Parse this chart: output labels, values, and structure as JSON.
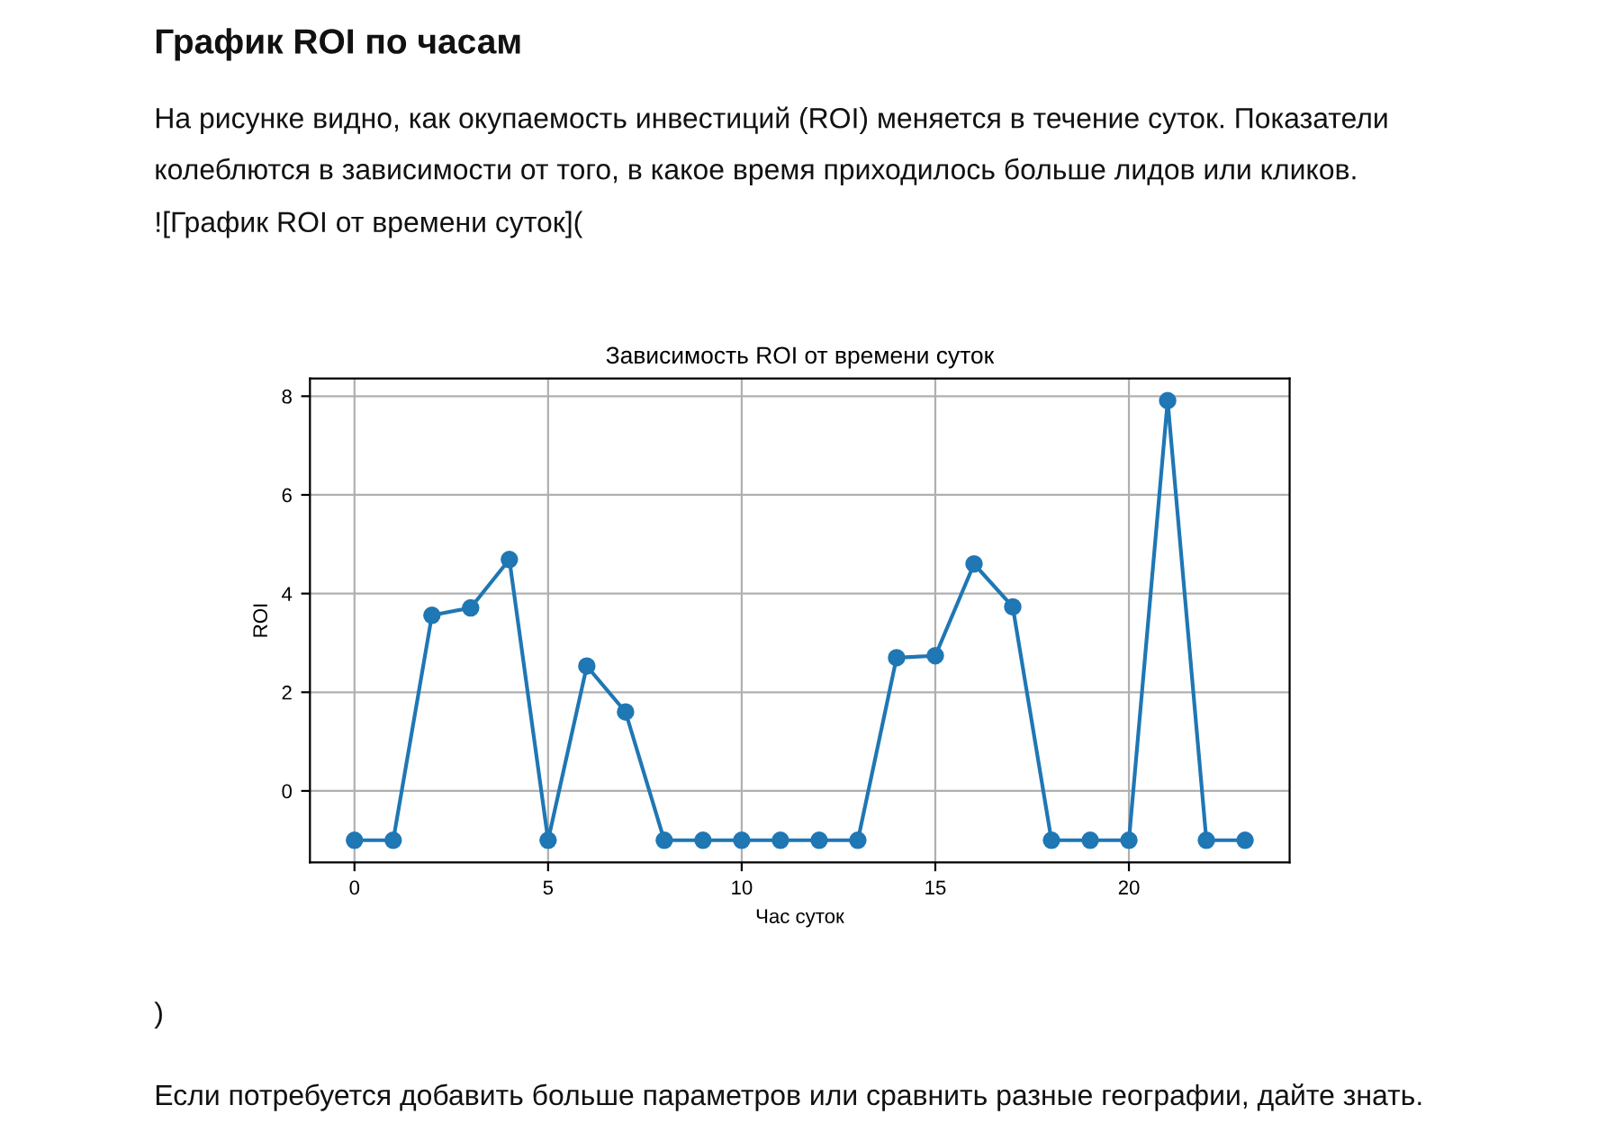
{
  "chart_data": {
    "type": "line",
    "title": "Зависимость ROI от времени суток",
    "xlabel": "Час суток",
    "ylabel": "ROI",
    "annotations": [
      "График ROI по часам",
      "На рисунке видно, как окупаемость инвестиций (ROI) меняется в течение суток. Показатели\nколеблются в зависимости от того, в какое время приходилось больше лидов или кликов.",
      "![График ROI от времени суток](",
      ")",
      "Если потребуется добавить больше параметров или сравнить разные географии, дайте знать."
    ],
    "x": [
      0,
      1,
      2,
      3,
      4,
      5,
      6,
      7,
      8,
      9,
      10,
      11,
      12,
      13,
      14,
      15,
      16,
      17,
      18,
      19,
      20,
      21,
      22,
      23
    ],
    "series": [
      {
        "color": "#1f77b4",
        "values": [
          -1,
          -1,
          3.56,
          3.71,
          4.69,
          -1,
          2.53,
          1.6,
          -1,
          -1,
          -1,
          -1,
          -1,
          -1,
          2.7,
          2.74,
          4.6,
          3.73,
          -1,
          -1,
          -1,
          7.91,
          -1,
          -1
        ]
      }
    ],
    "xlim": [
      -1.15,
      24.15
    ],
    "ylim": [
      -1.45,
      8.36
    ],
    "xticks": [
      0,
      5,
      10,
      15,
      20
    ],
    "yticks": [
      0,
      2,
      4,
      6,
      8
    ],
    "grid": true,
    "marker": "circle",
    "line_style": "solid",
    "legend": false
  }
}
